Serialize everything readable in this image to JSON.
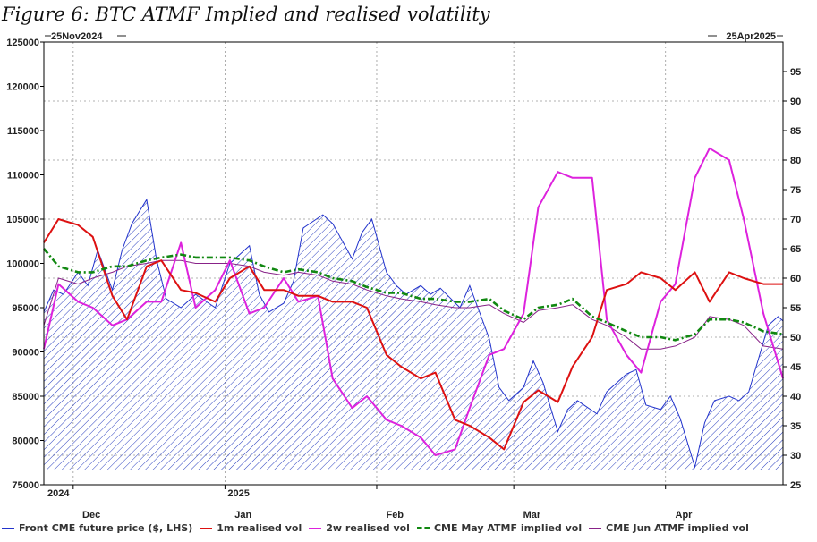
{
  "title": "Figure 6: BTC ATMF Implied and realised volatility",
  "chart_data": {
    "type": "line",
    "date_range_labels": {
      "start": "25Nov2024",
      "end": "25Apr2025"
    },
    "x_tick_labels": [
      "Dec",
      "Jan",
      "Feb",
      "Mar",
      "Apr"
    ],
    "year_labels": [
      "2024",
      "2025"
    ],
    "left_axis": {
      "ticks": [
        75000,
        80000,
        85000,
        90000,
        95000,
        100000,
        105000,
        110000,
        115000,
        120000,
        125000
      ],
      "ylim": [
        75000,
        125000
      ]
    },
    "right_axis": {
      "ticks": [
        25,
        30,
        35,
        40,
        45,
        50,
        55,
        60,
        65,
        70,
        75,
        80,
        85,
        90,
        95
      ],
      "ylim": [
        25,
        100
      ]
    },
    "grid": true,
    "legend_position": "bottom",
    "series": [
      {
        "name": "Front CME future price ($, LHS)",
        "axis": "left",
        "color": "#2233cc",
        "style": "hatched-area",
        "x": [
          "2024-11-25",
          "2024-11-27",
          "2024-11-29",
          "2024-12-02",
          "2024-12-04",
          "2024-12-06",
          "2024-12-09",
          "2024-12-11",
          "2024-12-13",
          "2024-12-16",
          "2024-12-18",
          "2024-12-20",
          "2024-12-23",
          "2024-12-26",
          "2024-12-30",
          "2025-01-02",
          "2025-01-06",
          "2025-01-08",
          "2025-01-10",
          "2025-01-13",
          "2025-01-15",
          "2025-01-17",
          "2025-01-21",
          "2025-01-23",
          "2025-01-27",
          "2025-01-29",
          "2025-01-31",
          "2025-02-03",
          "2025-02-05",
          "2025-02-07",
          "2025-02-10",
          "2025-02-12",
          "2025-02-14",
          "2025-02-18",
          "2025-02-20",
          "2025-02-24",
          "2025-02-26",
          "2025-02-28",
          "2025-03-03",
          "2025-03-05",
          "2025-03-07",
          "2025-03-10",
          "2025-03-12",
          "2025-03-14",
          "2025-03-18",
          "2025-03-20",
          "2025-03-24",
          "2025-03-26",
          "2025-03-28",
          "2025-03-31",
          "2025-04-02",
          "2025-04-04",
          "2025-04-07",
          "2025-04-09",
          "2025-04-11",
          "2025-04-14",
          "2025-04-16",
          "2025-04-18",
          "2025-04-22",
          "2025-04-24",
          "2025-04-25"
        ],
        "values": [
          94500,
          97000,
          96500,
          99000,
          97500,
          101500,
          97000,
          101500,
          104500,
          107200,
          100500,
          96000,
          95000,
          96500,
          95000,
          100000,
          102000,
          96500,
          94500,
          95500,
          98000,
          104000,
          105500,
          104500,
          100500,
          103500,
          105000,
          99000,
          97500,
          96500,
          97500,
          96500,
          97200,
          95000,
          97500,
          91500,
          86000,
          84500,
          86000,
          89000,
          86500,
          81000,
          83500,
          84500,
          83000,
          85500,
          87500,
          88000,
          84000,
          83500,
          85000,
          82500,
          77000,
          82000,
          84500,
          85000,
          84500,
          85500,
          93000,
          94000,
          93500
        ]
      },
      {
        "name": "1m realised vol",
        "axis": "right",
        "color": "#dd1111",
        "x": [
          "2024-11-25",
          "2024-11-28",
          "2024-12-02",
          "2024-12-05",
          "2024-12-09",
          "2024-12-12",
          "2024-12-16",
          "2024-12-19",
          "2024-12-23",
          "2024-12-26",
          "2024-12-30",
          "2025-01-02",
          "2025-01-06",
          "2025-01-09",
          "2025-01-13",
          "2025-01-16",
          "2025-01-20",
          "2025-01-23",
          "2025-01-27",
          "2025-01-30",
          "2025-02-03",
          "2025-02-06",
          "2025-02-10",
          "2025-02-13",
          "2025-02-17",
          "2025-02-20",
          "2025-02-24",
          "2025-02-27",
          "2025-03-03",
          "2025-03-06",
          "2025-03-10",
          "2025-03-13",
          "2025-03-17",
          "2025-03-20",
          "2025-03-24",
          "2025-03-27",
          "2025-03-31",
          "2025-04-03",
          "2025-04-07",
          "2025-04-10",
          "2025-04-14",
          "2025-04-17",
          "2025-04-21",
          "2025-04-25"
        ],
        "values": [
          66,
          70,
          69,
          67,
          57,
          53,
          62,
          63,
          58,
          57.5,
          56,
          60,
          62,
          58,
          58,
          57,
          57,
          56,
          56,
          55,
          47,
          45,
          43,
          44,
          36,
          35,
          33,
          31,
          39,
          41,
          39,
          45,
          50,
          58,
          59,
          61,
          60,
          58,
          61,
          56,
          61,
          60,
          59,
          59
        ]
      },
      {
        "name": "2w realised vol",
        "axis": "right",
        "color": "#dd22dd",
        "x": [
          "2024-11-25",
          "2024-11-28",
          "2024-12-02",
          "2024-12-05",
          "2024-12-09",
          "2024-12-12",
          "2024-12-16",
          "2024-12-19",
          "2024-12-23",
          "2024-12-26",
          "2024-12-30",
          "2025-01-02",
          "2025-01-06",
          "2025-01-09",
          "2025-01-13",
          "2025-01-16",
          "2025-01-20",
          "2025-01-23",
          "2025-01-27",
          "2025-01-30",
          "2025-02-03",
          "2025-02-06",
          "2025-02-10",
          "2025-02-13",
          "2025-02-17",
          "2025-02-20",
          "2025-02-24",
          "2025-02-27",
          "2025-03-03",
          "2025-03-06",
          "2025-03-10",
          "2025-03-13",
          "2025-03-17",
          "2025-03-20",
          "2025-03-24",
          "2025-03-27",
          "2025-03-31",
          "2025-04-03",
          "2025-04-07",
          "2025-04-10",
          "2025-04-14",
          "2025-04-17",
          "2025-04-21",
          "2025-04-25"
        ],
        "values": [
          48,
          59,
          56,
          55,
          52,
          53,
          56,
          56,
          66,
          55,
          58,
          63,
          54,
          55,
          60,
          56,
          57,
          43,
          38,
          40,
          36,
          35,
          33,
          30,
          31,
          38,
          47,
          48,
          54,
          72,
          78,
          77,
          77,
          53,
          47,
          44,
          56,
          59,
          77,
          82,
          80,
          70,
          54,
          43
        ]
      },
      {
        "name": "CME May ATMF implied vol",
        "axis": "right",
        "color": "#118811",
        "style": "dash-dot",
        "x": [
          "2024-11-25",
          "2024-11-28",
          "2024-12-02",
          "2024-12-05",
          "2024-12-09",
          "2024-12-12",
          "2024-12-16",
          "2024-12-19",
          "2024-12-23",
          "2024-12-26",
          "2024-12-30",
          "2025-01-02",
          "2025-01-06",
          "2025-01-09",
          "2025-01-13",
          "2025-01-16",
          "2025-01-20",
          "2025-01-23",
          "2025-01-27",
          "2025-01-30",
          "2025-02-03",
          "2025-02-06",
          "2025-02-10",
          "2025-02-13",
          "2025-02-17",
          "2025-02-20",
          "2025-02-24",
          "2025-02-27",
          "2025-03-03",
          "2025-03-06",
          "2025-03-10",
          "2025-03-13",
          "2025-03-17",
          "2025-03-20",
          "2025-03-24",
          "2025-03-27",
          "2025-03-31",
          "2025-04-03",
          "2025-04-07",
          "2025-04-10",
          "2025-04-14",
          "2025-04-17",
          "2025-04-21",
          "2025-04-25"
        ],
        "values": [
          65,
          62,
          61,
          61,
          62,
          62,
          63,
          63.5,
          64,
          63.5,
          63.5,
          63.5,
          63,
          62,
          61,
          61.5,
          61,
          60,
          59.5,
          58.5,
          57.5,
          57.5,
          56.5,
          56.5,
          56,
          56,
          56.5,
          54.5,
          53,
          55,
          55.5,
          56.5,
          53.5,
          52.5,
          51,
          50,
          50,
          49.5,
          50.5,
          53,
          53,
          52.5,
          51,
          50.5
        ]
      },
      {
        "name": "CME Jun ATMF implied vol",
        "axis": "right",
        "color": "#882288",
        "x": [
          "2024-11-25",
          "2024-11-28",
          "2024-12-02",
          "2024-12-05",
          "2024-12-09",
          "2024-12-12",
          "2024-12-16",
          "2024-12-19",
          "2024-12-23",
          "2024-12-26",
          "2024-12-30",
          "2025-01-02",
          "2025-01-06",
          "2025-01-09",
          "2025-01-13",
          "2025-01-16",
          "2025-01-20",
          "2025-01-23",
          "2025-01-27",
          "2025-01-30",
          "2025-02-03",
          "2025-02-06",
          "2025-02-10",
          "2025-02-13",
          "2025-02-17",
          "2025-02-20",
          "2025-02-24",
          "2025-02-27",
          "2025-03-03",
          "2025-03-06",
          "2025-03-10",
          "2025-03-13",
          "2025-03-17",
          "2025-03-20",
          "2025-03-24",
          "2025-03-27",
          "2025-03-31",
          "2025-04-03",
          "2025-04-07",
          "2025-04-10",
          "2025-04-14",
          "2025-04-17",
          "2025-04-21",
          "2025-04-25"
        ],
        "values": [
          52,
          60,
          59,
          60,
          61,
          62,
          62.5,
          63,
          63,
          62.5,
          62.5,
          62.5,
          62,
          61,
          60.5,
          61,
          60.5,
          59.5,
          59,
          58,
          57,
          56.5,
          56,
          55.5,
          55,
          55,
          55.5,
          54,
          52.5,
          54.5,
          55,
          55.5,
          53,
          52,
          50,
          48,
          48,
          48.5,
          50,
          53.5,
          53,
          52,
          48.5,
          48
        ]
      }
    ]
  }
}
